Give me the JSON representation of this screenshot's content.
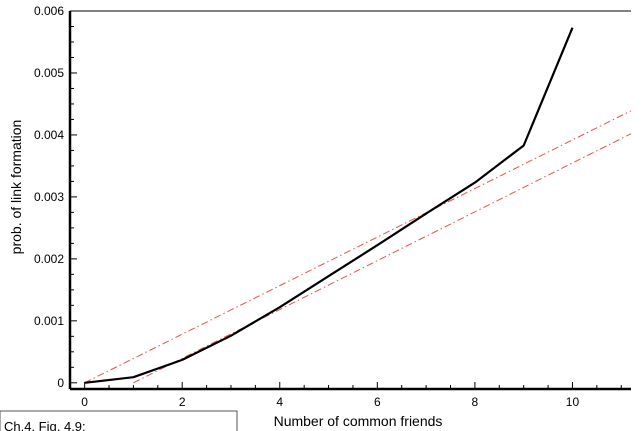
{
  "chart_data": {
    "type": "line",
    "xlabel": "Number of common friends",
    "ylabel": "prob. of link formation",
    "xlim": [
      -0.3,
      11.2
    ],
    "ylim": [
      -0.0001,
      0.006
    ],
    "x_ticks": [
      0,
      2,
      4,
      6,
      8,
      10
    ],
    "x_tick_labels": [
      "0",
      "2",
      "4",
      "6",
      "8",
      "10"
    ],
    "y_ticks": [
      0,
      0.001,
      0.002,
      0.003,
      0.004,
      0.005,
      0.006
    ],
    "y_tick_labels": [
      "0",
      "0.001",
      "0.002",
      "0.003",
      "0.004",
      "0.005",
      "0.006"
    ],
    "grid": false,
    "series": [
      {
        "style": "solid",
        "color": "#000000",
        "x": [
          0,
          1,
          2,
          3,
          4,
          5,
          6,
          7,
          8,
          9,
          10
        ],
        "y": [
          0.0,
          9e-05,
          0.00037,
          0.00076,
          0.00122,
          0.00172,
          0.00222,
          0.00273,
          0.00323,
          0.00383,
          0.00573
        ]
      },
      {
        "style": "dash-dot",
        "color": "#e8504a",
        "x": [
          0,
          11.2
        ],
        "y": [
          0.0,
          0.00439
        ]
      },
      {
        "style": "dash-dot",
        "color": "#e8504a",
        "x": [
          1,
          11.2
        ],
        "y": [
          0.0,
          0.00402
        ]
      }
    ]
  },
  "caption": {
    "text": "Ch.4, Fig. 4.9;"
  }
}
